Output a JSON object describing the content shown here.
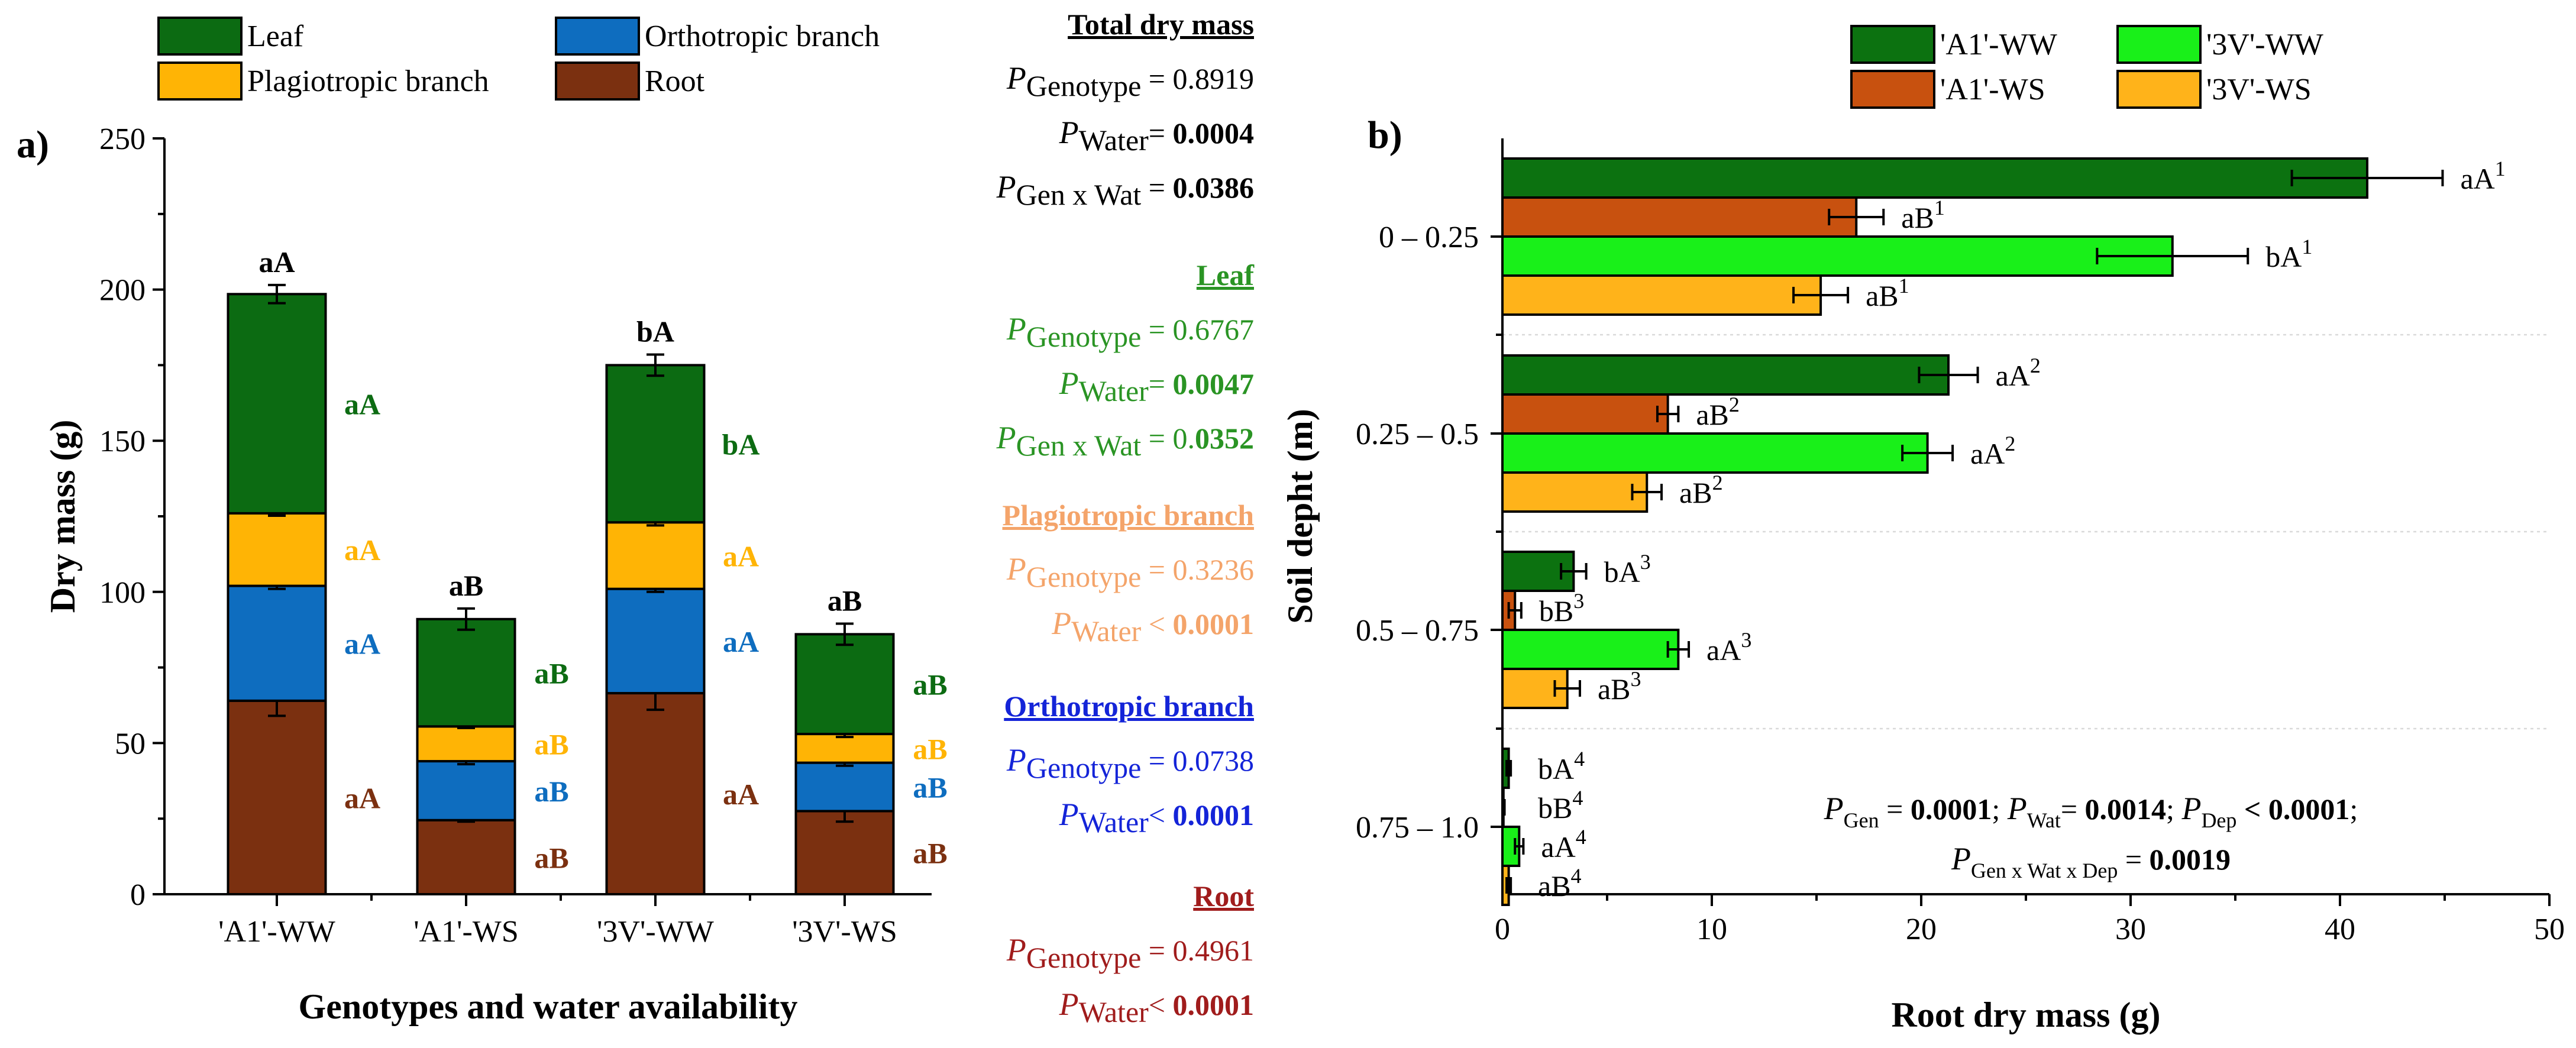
{
  "chart_data": [
    {
      "type": "bar",
      "stacked": true,
      "panel_label": "a)",
      "categories": [
        "'A1'-WW",
        "'A1'-WS",
        "'3V'-WW",
        "'3V'-WS"
      ],
      "xlabel": "Genotypes and water availability",
      "ylabel": "Dry mass (g)",
      "ylim": [
        0,
        250
      ],
      "yticks": [
        "0",
        "50",
        "100",
        "150",
        "200",
        "250"
      ],
      "legend": [
        "Leaf",
        "Orthotropic branch",
        "Plagiotropic branch",
        "Root"
      ],
      "series": [
        {
          "name": "Root",
          "color": "#7b3010",
          "label_color": "#7b3010",
          "values": [
            64,
            24.5,
            66.5,
            27.5
          ],
          "errors": [
            5,
            0.5,
            5.5,
            3.5
          ],
          "labels": [
            "aA",
            "aB",
            "aA",
            "aB"
          ]
        },
        {
          "name": "Orthotropic branch",
          "color": "#0e6dbf",
          "label_color": "#0e6dbf",
          "values": [
            38,
            19.5,
            34.5,
            16
          ],
          "errors": [
            1,
            1,
            1,
            1
          ],
          "labels": [
            "aA",
            "aB",
            "aA",
            "aB"
          ]
        },
        {
          "name": "Plagiotropic branch",
          "color": "#ffb405",
          "label_color": "#ffb405",
          "values": [
            24,
            11.5,
            22,
            9.5
          ],
          "errors": [
            0.8,
            0.5,
            1,
            1
          ],
          "labels": [
            "aA",
            "aB",
            "aA",
            "aB"
          ]
        },
        {
          "name": "Leaf",
          "color": "#0c6b12",
          "label_color": "#0c6b12",
          "values": [
            72.5,
            35.5,
            52,
            33
          ],
          "errors": [
            3,
            3.5,
            3.5,
            3.5
          ],
          "labels": [
            "aA",
            "aB",
            "bA",
            "aB"
          ]
        }
      ],
      "total_labels": [
        "aA",
        "aB",
        "bA",
        "aB"
      ]
    },
    {
      "type": "bar",
      "orientation": "horizontal",
      "panel_label": "b)",
      "categories": [
        "0 – 0.25",
        "0.25 – 0.5",
        "0.5  – 0.75",
        "0.75 – 1.0"
      ],
      "xlabel": "Root dry mass (g)",
      "ylabel": "Soil depht (m)",
      "xlim": [
        0,
        50
      ],
      "xticks": [
        "0",
        "10",
        "20",
        "30",
        "40",
        "50"
      ],
      "legend": [
        "'A1'-WW",
        "'3V'-WW",
        "'A1'-WS",
        "'3V'-WS"
      ],
      "series": [
        {
          "name": "'A1'-WW",
          "color": "#0c7210",
          "values": [
            41.3,
            21.3,
            3.4,
            0.3
          ],
          "errors": [
            3.6,
            1.4,
            0.6,
            0.1
          ],
          "labels": [
            "aA",
            "aA",
            "bA",
            "bA"
          ]
        },
        {
          "name": "'A1'-WS",
          "color": "#c8510f",
          "values": [
            16.9,
            7.9,
            0.6,
            0.05
          ],
          "errors": [
            1.3,
            0.5,
            0.3,
            0.05
          ],
          "labels": [
            "aB",
            "aB",
            "bB",
            "bB"
          ]
        },
        {
          "name": "'3V'-WW",
          "color": "#19f019",
          "values": [
            32,
            20.3,
            8.4,
            0.8
          ],
          "errors": [
            3.6,
            1.2,
            0.5,
            0.2
          ],
          "labels": [
            "bA",
            "aA",
            "aA",
            "aA"
          ]
        },
        {
          "name": "'3V'-WS",
          "color": "#ffb31a",
          "values": [
            15.2,
            6.9,
            3.1,
            0.3
          ],
          "errors": [
            1.3,
            0.7,
            0.6,
            0.1
          ],
          "labels": [
            "aB",
            "aB",
            "aB",
            "aB"
          ]
        }
      ],
      "depth_sups": [
        "1",
        "2",
        "3",
        "4"
      ]
    }
  ],
  "stats": [
    {
      "title": "Total dry mass",
      "color": "#000000",
      "lines": [
        {
          "var": "P",
          "sub": "Genotype",
          "op": " = ",
          "val": "0.8919",
          "bold": false
        },
        {
          "var": "P",
          "sub": "Water",
          "op": "= ",
          "val": "0.0004",
          "bold": true
        },
        {
          "var": "P",
          "sub": "Gen x Wat",
          "op": " = ",
          "val": "0.0386",
          "bold": true
        }
      ]
    },
    {
      "title": "Leaf",
      "color": "#2a9424",
      "lines": [
        {
          "var": "P",
          "sub": "Genotype",
          "op": " = ",
          "val": "0.6767",
          "bold": false
        },
        {
          "var": "P",
          "sub": "Water",
          "op": "= ",
          "val": "0.0047",
          "bold": true
        },
        {
          "var": "P",
          "sub": "Gen x Wat",
          "op": " = 0.",
          "val": "0352",
          "bold": true
        }
      ]
    },
    {
      "title": "Plagiotropic branch",
      "color": "#f4a46a",
      "lines": [
        {
          "var": "P",
          "sub": "Genotype",
          "op": " = ",
          "val": "0.3236",
          "bold": false
        },
        {
          "var": "P",
          "sub": "Water",
          "op": " < ",
          "val": "0.0001",
          "bold": true
        }
      ]
    },
    {
      "title": "Orthotropic branch",
      "color": "#1424d8",
      "lines": [
        {
          "var": "P",
          "sub": "Genotype",
          "op": " = ",
          "val": "0.0738",
          "bold": false
        },
        {
          "var": "P",
          "sub": "Water",
          "op": "< ",
          "val": "0.0001",
          "bold": true
        }
      ]
    },
    {
      "title": "Root",
      "color": "#a01c1c",
      "lines": [
        {
          "var": "P",
          "sub": "Genotype",
          "op": " = ",
          "val": "0.4961",
          "bold": false
        },
        {
          "var": "P",
          "sub": "Water",
          "op": "< ",
          "val": "0.0001",
          "bold": true
        }
      ]
    }
  ],
  "annotation_b": {
    "line1": [
      {
        "t": "P",
        "k": "i"
      },
      {
        "t": "Gen",
        "k": "sub"
      },
      {
        "t": " = ",
        "k": "n"
      },
      {
        "t": "0.0001",
        "k": "b"
      },
      {
        "t": "; ",
        "k": "n"
      },
      {
        "t": "P",
        "k": "i"
      },
      {
        "t": "Wat",
        "k": "sub"
      },
      {
        "t": "= ",
        "k": "n"
      },
      {
        "t": "0.0014",
        "k": "b"
      },
      {
        "t": "; ",
        "k": "n"
      },
      {
        "t": "P",
        "k": "i"
      },
      {
        "t": "Dep",
        "k": "sub"
      },
      {
        "t": " < 0.0001",
        "k": "b"
      },
      {
        "t": ";",
        "k": "n"
      }
    ],
    "line2": [
      {
        "t": "P",
        "k": "i"
      },
      {
        "t": "Gen x Wat x Dep",
        "k": "sub"
      },
      {
        "t": " = ",
        "k": "n"
      },
      {
        "t": "0.0019",
        "k": "b"
      }
    ]
  }
}
